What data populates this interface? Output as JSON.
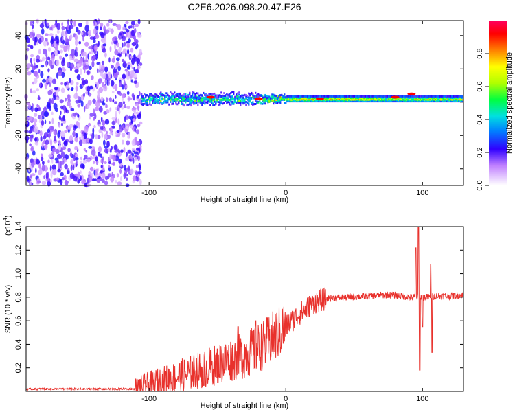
{
  "title": "C2E6.2026.098.20.47.E26",
  "chart_data": [
    {
      "type": "heatmap",
      "xlabel": "Height of straight line (km)",
      "ylabel": "Frequency (Hz)",
      "xlim": [
        -190,
        130
      ],
      "ylim": [
        -50,
        49
      ],
      "xticks": [
        -100,
        0,
        100
      ],
      "xtick_labels": [
        "-100",
        "0",
        "100"
      ],
      "yticks": [
        -40,
        -20,
        0,
        20,
        40
      ],
      "ytick_labels": [
        "-40",
        "-20",
        "0",
        "20",
        "40"
      ],
      "noise_region_x": [
        -190,
        -106
      ],
      "band_center_freq_hz": 2,
      "peak_points": [
        {
          "x": -55,
          "freq": 3
        },
        {
          "x": -20,
          "freq": 2
        },
        {
          "x": 25,
          "freq": 2
        },
        {
          "x": 80,
          "freq": 3
        },
        {
          "x": 92,
          "freq": 5
        }
      ],
      "colorbar": {
        "label": "Normalized spectral amplitude",
        "range": [
          0,
          1
        ],
        "ticks": [
          0.0,
          0.2,
          0.4,
          0.6,
          0.8
        ],
        "tick_labels": [
          "0.0",
          "0.2",
          "0.4",
          "0.6",
          "0.8"
        ],
        "stops": [
          {
            "v": 0.0,
            "c": "#ffffff"
          },
          {
            "v": 0.12,
            "c": "#c080ff"
          },
          {
            "v": 0.22,
            "c": "#3000ff"
          },
          {
            "v": 0.33,
            "c": "#0080ff"
          },
          {
            "v": 0.42,
            "c": "#00e0e0"
          },
          {
            "v": 0.52,
            "c": "#00ff40"
          },
          {
            "v": 0.62,
            "c": "#b0ff00"
          },
          {
            "v": 0.72,
            "c": "#ffff00"
          },
          {
            "v": 0.82,
            "c": "#ff8000"
          },
          {
            "v": 0.92,
            "c": "#ff0000"
          },
          {
            "v": 1.0,
            "c": "#ff0060"
          }
        ]
      }
    },
    {
      "type": "line",
      "xlabel": "Height of straight line (km)",
      "ylabel": "SNR (10 * v/v)",
      "y_multiplier": "(x10",
      "y_multiplier_exp": "4",
      "xlim": [
        -190,
        130
      ],
      "ylim": [
        0,
        1.4
      ],
      "xticks": [
        -100,
        0,
        100
      ],
      "xtick_labels": [
        "-100",
        "0",
        "100"
      ],
      "yticks": [
        0.2,
        0.4,
        0.6,
        0.8,
        1.0,
        1.2,
        1.4
      ],
      "ytick_labels": [
        "0.2",
        "0.4",
        "0.6",
        "0.8",
        "1.0",
        "1.2",
        "1.4"
      ],
      "line_color": "#e8312c",
      "trend": {
        "x": [
          -190,
          -110,
          -102,
          -90,
          -75,
          -60,
          -45,
          -30,
          -15,
          0,
          10,
          20,
          30,
          45,
          60,
          75,
          85,
          90,
          95,
          100,
          105,
          110,
          120,
          130
        ],
        "y": [
          0.02,
          0.02,
          0.05,
          0.09,
          0.14,
          0.19,
          0.25,
          0.31,
          0.4,
          0.55,
          0.66,
          0.75,
          0.79,
          0.8,
          0.81,
          0.82,
          0.81,
          0.8,
          0.8,
          0.8,
          0.8,
          0.81,
          0.81,
          0.82
        ]
      },
      "spikes": [
        {
          "x": 97,
          "y": 1.42
        },
        {
          "x": 98,
          "y": 0.18
        },
        {
          "x": 95,
          "y": 1.22
        },
        {
          "x": 100,
          "y": 0.55
        },
        {
          "x": 106,
          "y": 1.08
        },
        {
          "x": 107,
          "y": 0.33
        },
        {
          "x": -60,
          "y": 0.05
        },
        {
          "x": -35,
          "y": 0.55
        },
        {
          "x": -22,
          "y": 0.6
        }
      ]
    }
  ]
}
